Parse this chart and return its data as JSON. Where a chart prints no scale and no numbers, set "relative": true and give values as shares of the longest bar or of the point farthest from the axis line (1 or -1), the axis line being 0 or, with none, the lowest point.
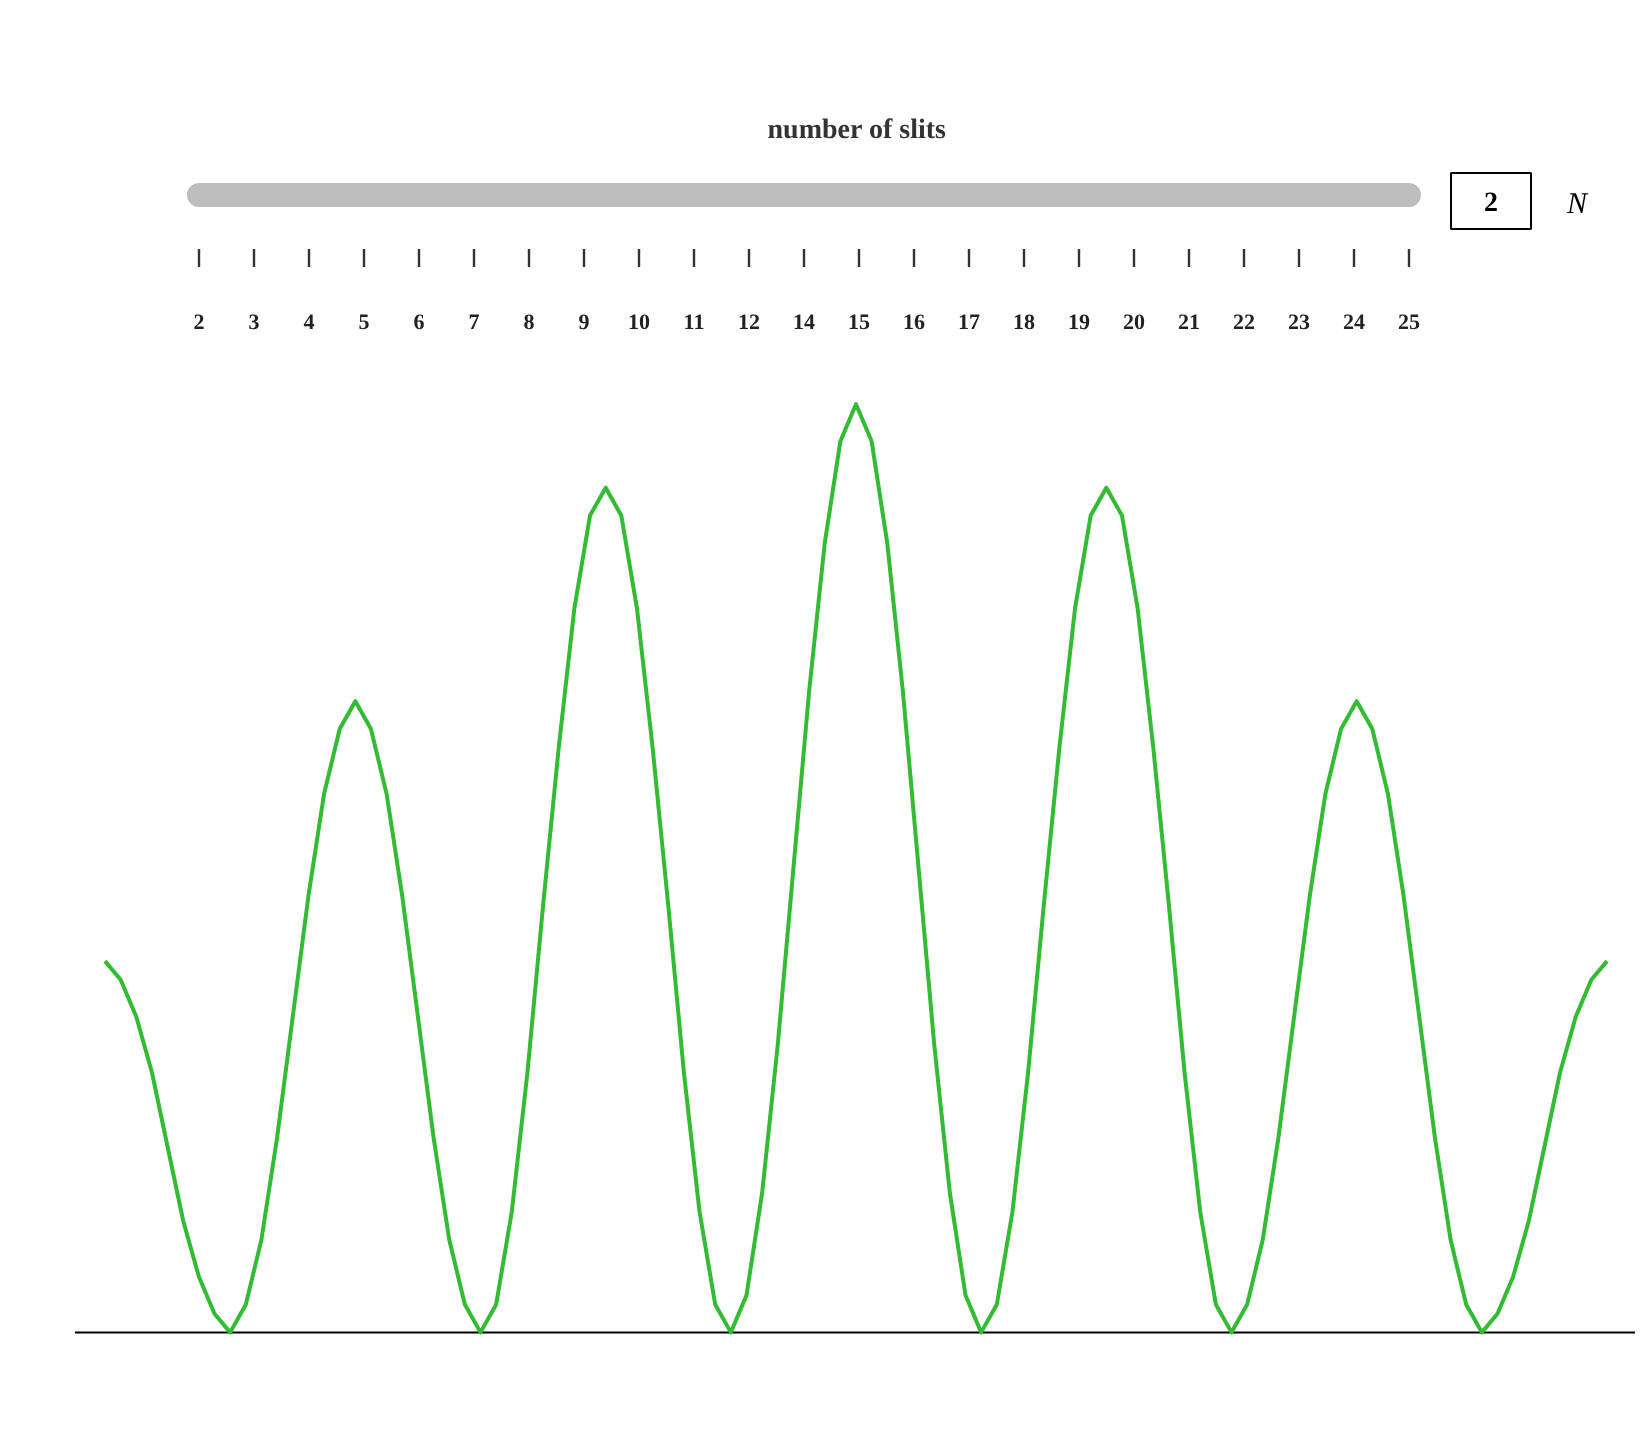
{
  "chart_data": [
    {
      "type": "other",
      "title": "number of slits",
      "categories": [
        "2",
        "3",
        "4",
        "5",
        "6",
        "7",
        "8",
        "9",
        "10",
        "11",
        "12",
        "14",
        "15",
        "16",
        "17",
        "18",
        "19",
        "20",
        "21",
        "22",
        "23",
        "24",
        "25"
      ],
      "annotations": [
        "2",
        "N"
      ]
    },
    {
      "type": "line",
      "relative": true,
      "color": "#33bb33",
      "grid": false,
      "legend": false,
      "marker": "none",
      "categories": [
        null,
        null,
        null,
        null,
        null,
        null,
        null,
        null,
        null,
        null,
        null,
        null,
        null,
        null,
        null,
        null,
        null,
        null,
        null,
        null,
        null,
        null,
        null,
        null,
        null,
        null,
        null,
        null,
        null,
        null,
        null,
        null,
        null,
        null,
        null,
        null,
        null,
        null,
        null,
        null,
        null,
        null,
        null,
        null,
        null,
        null,
        null,
        null,
        null,
        null,
        null,
        null,
        null,
        null,
        null,
        null,
        null,
        null,
        null,
        null,
        null,
        null,
        null,
        null,
        null,
        null,
        null,
        null,
        null,
        null,
        null,
        null,
        null,
        null,
        null,
        null,
        null,
        null,
        null,
        null,
        null,
        null,
        null,
        null,
        null,
        null,
        null,
        null,
        null,
        null,
        null,
        null,
        null,
        null,
        null,
        null,
        null
      ],
      "values": [
        0.4,
        0.38,
        0.34,
        0.28,
        0.2,
        0.12,
        0.06,
        0.02,
        0,
        0.03,
        0.1,
        0.21,
        0.34,
        0.47,
        0.58,
        0.65,
        0.68,
        0.65,
        0.58,
        0.47,
        0.34,
        0.21,
        0.1,
        0.03,
        0,
        0.03,
        0.13,
        0.28,
        0.46,
        0.63,
        0.78,
        0.88,
        0.91,
        0.88,
        0.78,
        0.63,
        0.46,
        0.28,
        0.13,
        0.03,
        0,
        0.04,
        0.15,
        0.31,
        0.5,
        0.69,
        0.85,
        0.96,
        1,
        0.96,
        0.85,
        0.69,
        0.5,
        0.31,
        0.15,
        0.04,
        0,
        0.03,
        0.13,
        0.28,
        0.46,
        0.63,
        0.78,
        0.88,
        0.91,
        0.88,
        0.78,
        0.63,
        0.46,
        0.28,
        0.13,
        0.03,
        0,
        0.03,
        0.1,
        0.21,
        0.34,
        0.47,
        0.58,
        0.65,
        0.68,
        0.65,
        0.58,
        0.47,
        0.34,
        0.21,
        0.1,
        0.03,
        0,
        0.02,
        0.06,
        0.12,
        0.2,
        0.28,
        0.34,
        0.38,
        0.4
      ]
    }
  ]
}
